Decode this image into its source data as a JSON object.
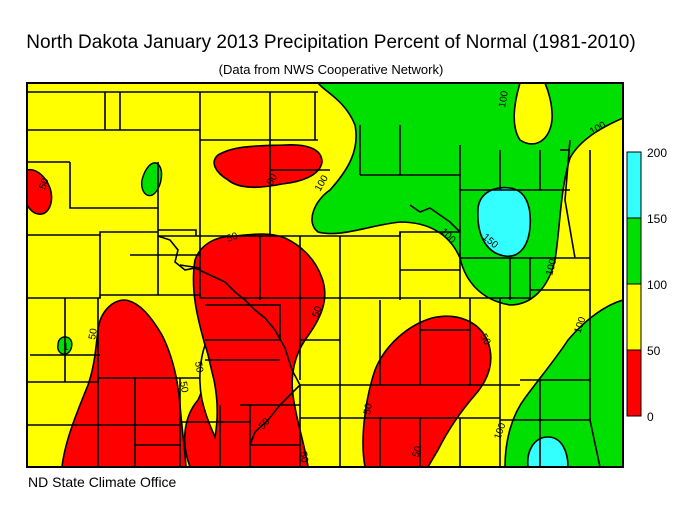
{
  "title": "North Dakota January 2013 Precipitation Percent of Normal (1981-2010)",
  "subtitle": "(Data from NWS Cooperative Network)",
  "credit": "ND State Climate Office",
  "legend": {
    "ticks": [
      "200",
      "150",
      "100",
      "50",
      "0"
    ],
    "bins": [
      {
        "range": "150-200",
        "color": "#33ffff"
      },
      {
        "range": "100-150",
        "color": "#00e000"
      },
      {
        "range": "50-100",
        "color": "#ffff00"
      },
      {
        "range": "0-50",
        "color": "#ff0000"
      }
    ]
  },
  "colors": {
    "under_50": "#ff0000",
    "50_100": "#ffff00",
    "100_150": "#00e000",
    "150_200": "#33ffff",
    "county_lines": "#000000"
  },
  "contour_labels": [
    "50",
    "50",
    "50",
    "50",
    "50",
    "50",
    "50",
    "50",
    "50",
    "50",
    "50",
    "100",
    "100",
    "100",
    "100",
    "100",
    "100",
    "150",
    "1"
  ]
}
